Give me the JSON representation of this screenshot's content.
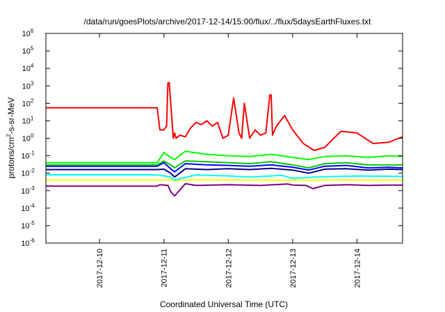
{
  "chart_data": {
    "type": "line",
    "title": "/data/run/goesPlots/archive/2017-12-14/15:00/flux/../flux/5daysEarthFluxes.txt",
    "xlabel": "Coordinated Universal Time (UTC)",
    "ylabel": {
      "base": "protons/cm",
      "sup": "2",
      "rest": "-s-sr-MeV"
    },
    "xlim": [
      "2017-12-09 04:00",
      "2017-12-14 17:00"
    ],
    "ylim": [
      1e-06,
      1000000.0
    ],
    "yscale": "log",
    "grid": false,
    "legend": "none",
    "x_ticks": [
      "2017-12-10",
      "2017-12-11",
      "2017-12-12",
      "2017-12-13",
      "2017-12-14"
    ],
    "y_ticks": [
      {
        "base": "10",
        "exp": "-6",
        "value": 1e-06
      },
      {
        "base": "10",
        "exp": "-5",
        "value": 1e-05
      },
      {
        "base": "10",
        "exp": "-4",
        "value": 0.0001
      },
      {
        "base": "10",
        "exp": "-3",
        "value": 0.001
      },
      {
        "base": "10",
        "exp": "-2",
        "value": 0.01
      },
      {
        "base": "10",
        "exp": "-1",
        "value": 0.1
      },
      {
        "base": "10",
        "exp": "0",
        "value": 1
      },
      {
        "base": "10",
        "exp": "1",
        "value": 10
      },
      {
        "base": "10",
        "exp": "2",
        "value": 100
      },
      {
        "base": "10",
        "exp": "3",
        "value": 1000
      },
      {
        "base": "10",
        "exp": "4",
        "value": 10000
      },
      {
        "base": "10",
        "exp": "5",
        "value": 100000
      },
      {
        "base": "10",
        "exp": "6",
        "value": 1000000
      }
    ],
    "series": [
      {
        "color": "#800080",
        "x": [
          "2017-12-09 04:00",
          "2017-12-10 21:30",
          "2017-12-10 22:30",
          "2017-12-11 01:30",
          "2017-12-11 02:30",
          "2017-12-11 04:00",
          "2017-12-11 08:00",
          "2017-12-11 12:00",
          "2017-12-12 00:00",
          "2017-12-12 12:00",
          "2017-12-12 22:00",
          "2017-12-13 00:00",
          "2017-12-13 05:00",
          "2017-12-13 07:30",
          "2017-12-13 12:00",
          "2017-12-13 20:00",
          "2017-12-14 04:00",
          "2017-12-14 12:00",
          "2017-12-14 17:00"
        ],
        "y": [
          0.0018,
          0.0018,
          0.0022,
          0.002,
          0.0009,
          0.0005,
          0.0025,
          0.002,
          0.0022,
          0.002,
          0.0024,
          0.0021,
          0.002,
          0.0013,
          0.002,
          0.0022,
          0.002,
          0.0021,
          0.0021
        ]
      },
      {
        "color": "#ffff00",
        "x": [
          "2017-12-09 04:00",
          "2017-12-10 21:30",
          "2017-12-11 02:30",
          "2017-12-11 04:00",
          "2017-12-11 12:00",
          "2017-12-12 00:00",
          "2017-12-12 12:00",
          "2017-12-13 00:00",
          "2017-12-13 12:00",
          "2017-12-14 00:00",
          "2017-12-14 17:00"
        ],
        "y": [
          0.004,
          0.004,
          0.0042,
          0.0038,
          0.0042,
          0.0041,
          0.004,
          0.0039,
          0.0041,
          0.004,
          0.004
        ]
      },
      {
        "color": "#00ffff",
        "x": [
          "2017-12-09 04:00",
          "2017-12-10 21:30",
          "2017-12-11 02:30",
          "2017-12-11 04:00",
          "2017-12-11 12:00",
          "2017-12-12 00:00",
          "2017-12-12 08:00",
          "2017-12-12 20:00",
          "2017-12-13 00:00",
          "2017-12-13 08:00",
          "2017-12-14 00:00",
          "2017-12-14 17:00"
        ],
        "y": [
          0.008,
          0.008,
          0.006,
          0.004,
          0.008,
          0.007,
          0.006,
          0.0075,
          0.005,
          0.006,
          0.007,
          0.0065
        ]
      },
      {
        "color": "#00008b",
        "x": [
          "2017-12-09 04:00",
          "2017-12-10 21:30",
          "2017-12-11 00:00",
          "2017-12-11 02:30",
          "2017-12-11 04:00",
          "2017-12-11 08:00",
          "2017-12-11 16:00",
          "2017-12-12 00:00",
          "2017-12-12 08:00",
          "2017-12-12 16:00",
          "2017-12-13 00:00",
          "2017-12-13 06:00",
          "2017-12-13 12:00",
          "2017-12-13 20:00",
          "2017-12-14 04:00",
          "2017-12-14 12:00",
          "2017-12-14 17:00"
        ],
        "y": [
          0.016,
          0.016,
          0.017,
          0.01,
          0.006,
          0.018,
          0.016,
          0.018,
          0.016,
          0.019,
          0.015,
          0.01,
          0.017,
          0.018,
          0.015,
          0.017,
          0.016
        ]
      },
      {
        "color": "#0000ff",
        "x": [
          "2017-12-09 04:00",
          "2017-12-10 21:30",
          "2017-12-11 00:00",
          "2017-12-11 02:30",
          "2017-12-11 04:00",
          "2017-12-11 08:00",
          "2017-12-11 16:00",
          "2017-12-12 00:00",
          "2017-12-12 08:00",
          "2017-12-12 16:00",
          "2017-12-13 00:00",
          "2017-12-13 06:00",
          "2017-12-13 12:00",
          "2017-12-13 20:00",
          "2017-12-14 04:00",
          "2017-12-14 12:00",
          "2017-12-14 17:00"
        ],
        "y": [
          0.025,
          0.025,
          0.04,
          0.018,
          0.012,
          0.035,
          0.03,
          0.028,
          0.025,
          0.03,
          0.022,
          0.015,
          0.025,
          0.028,
          0.02,
          0.022,
          0.02
        ]
      },
      {
        "color": "#00c800",
        "x": [
          "2017-12-09 04:00",
          "2017-12-10 21:30",
          "2017-12-11 00:00",
          "2017-12-11 02:30",
          "2017-12-11 04:00",
          "2017-12-11 08:00",
          "2017-12-11 16:00",
          "2017-12-12 00:00",
          "2017-12-12 08:00",
          "2017-12-12 16:00",
          "2017-12-13 00:00",
          "2017-12-13 06:00",
          "2017-12-13 12:00",
          "2017-12-13 20:00",
          "2017-12-14 04:00",
          "2017-12-14 12:00",
          "2017-12-14 17:00"
        ],
        "y": [
          0.03,
          0.03,
          0.05,
          0.03,
          0.02,
          0.05,
          0.045,
          0.04,
          0.035,
          0.045,
          0.03,
          0.02,
          0.035,
          0.04,
          0.03,
          0.03,
          0.03
        ]
      },
      {
        "color": "#00ff00",
        "x": [
          "2017-12-09 04:00",
          "2017-12-10 21:30",
          "2017-12-11 00:00",
          "2017-12-11 02:30",
          "2017-12-11 04:00",
          "2017-12-11 08:00",
          "2017-12-11 16:00",
          "2017-12-12 00:00",
          "2017-12-12 08:00",
          "2017-12-12 16:00",
          "2017-12-13 00:00",
          "2017-12-13 06:00",
          "2017-12-13 12:00",
          "2017-12-13 20:00",
          "2017-12-14 04:00",
          "2017-12-14 12:00",
          "2017-12-14 17:00"
        ],
        "y": [
          0.04,
          0.04,
          0.15,
          0.08,
          0.06,
          0.18,
          0.12,
          0.1,
          0.09,
          0.12,
          0.08,
          0.06,
          0.09,
          0.1,
          0.08,
          0.1,
          0.09
        ]
      },
      {
        "color": "#ff0000",
        "x": [
          "2017-12-09 04:00",
          "2017-12-10 21:30",
          "2017-12-10 22:30",
          "2017-12-11 00:00",
          "2017-12-11 01:00",
          "2017-12-11 01:30",
          "2017-12-11 02:00",
          "2017-12-11 03:30",
          "2017-12-11 04:00",
          "2017-12-11 04:30",
          "2017-12-11 06:00",
          "2017-12-11 08:00",
          "2017-12-11 10:00",
          "2017-12-11 12:00",
          "2017-12-11 14:00",
          "2017-12-11 16:00",
          "2017-12-11 18:00",
          "2017-12-11 20:00",
          "2017-12-11 22:00",
          "2017-12-12 00:00",
          "2017-12-12 02:00",
          "2017-12-12 04:00",
          "2017-12-12 05:00",
          "2017-12-12 06:00",
          "2017-12-12 08:00",
          "2017-12-12 10:00",
          "2017-12-12 12:00",
          "2017-12-12 14:00",
          "2017-12-12 15:30",
          "2017-12-12 16:00",
          "2017-12-12 16:30",
          "2017-12-12 18:00",
          "2017-12-12 21:00",
          "2017-12-13 00:00",
          "2017-12-13 04:00",
          "2017-12-13 08:00",
          "2017-12-13 12:00",
          "2017-12-13 18:00",
          "2017-12-14 00:00",
          "2017-12-14 06:00",
          "2017-12-14 12:00",
          "2017-12-14 17:00"
        ],
        "y": [
          55,
          55,
          3.0,
          3.0,
          5.0,
          1500,
          1500,
          1.0,
          2.0,
          1.0,
          1.5,
          1.2,
          4.0,
          8.0,
          6.0,
          10.0,
          5.0,
          8.0,
          1.0,
          1.5,
          200,
          2.0,
          1.0,
          100,
          1.0,
          3.0,
          1.5,
          2.0,
          300,
          300,
          1.5,
          5.0,
          20,
          3.0,
          0.5,
          0.2,
          0.3,
          2.5,
          2.0,
          0.5,
          0.6,
          1.2
        ]
      }
    ]
  }
}
